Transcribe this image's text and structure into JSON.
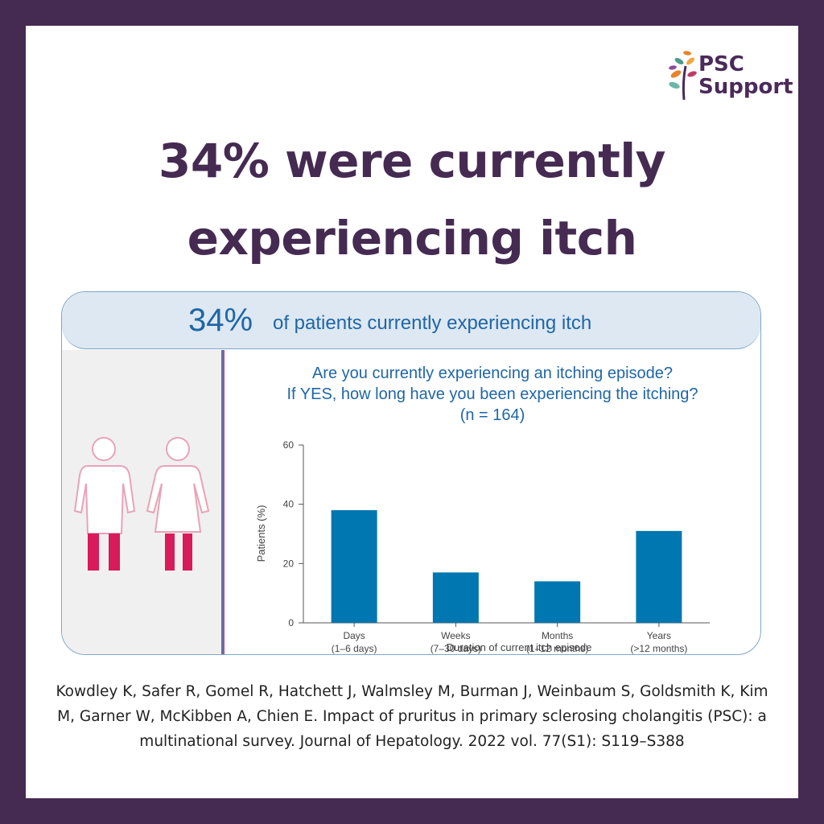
{
  "brand": {
    "logo_text": "PSC Support"
  },
  "headline": "34% were currently experiencing itch",
  "banner": {
    "percent": "34%",
    "text": "of patients currently experiencing itch"
  },
  "question": {
    "line1": "Are you currently experiencing an itching episode?",
    "line2": "If YES, how long have you been experiencing the itching?",
    "line3": "(n = 164)"
  },
  "citation": "Kowdley K, Safer R, Gomel R, Hatchett J, Walmsley M, Burman J, Weinbaum S, Goldsmith K, Kim M, Garner W, McKibben A, Chien E. Impact of pruritus in primary sclerosing cholangitis (PSC): a multinational survey. Journal of Hepatology. 2022 vol. 77(S1): S119–S388",
  "colors": {
    "frame": "#452a52",
    "bar": "#0077b0",
    "accent": "#1f66a6",
    "figure_fill": "#d81b5a"
  },
  "chart_data": {
    "type": "bar",
    "categories": [
      {
        "label": "Days",
        "sub": "(1–6 days)"
      },
      {
        "label": "Weeks",
        "sub": "(7–30 days)"
      },
      {
        "label": "Months",
        "sub": "(1–12 months)"
      },
      {
        "label": "Years",
        "sub": "(>12 months)"
      }
    ],
    "values": [
      38,
      17,
      14,
      31
    ],
    "ylabel": "Patients (%)",
    "xlabel": "Duration of current itch episode",
    "ylim": [
      0,
      60
    ],
    "yticks": [
      0,
      20,
      40,
      60
    ],
    "grid": false
  }
}
